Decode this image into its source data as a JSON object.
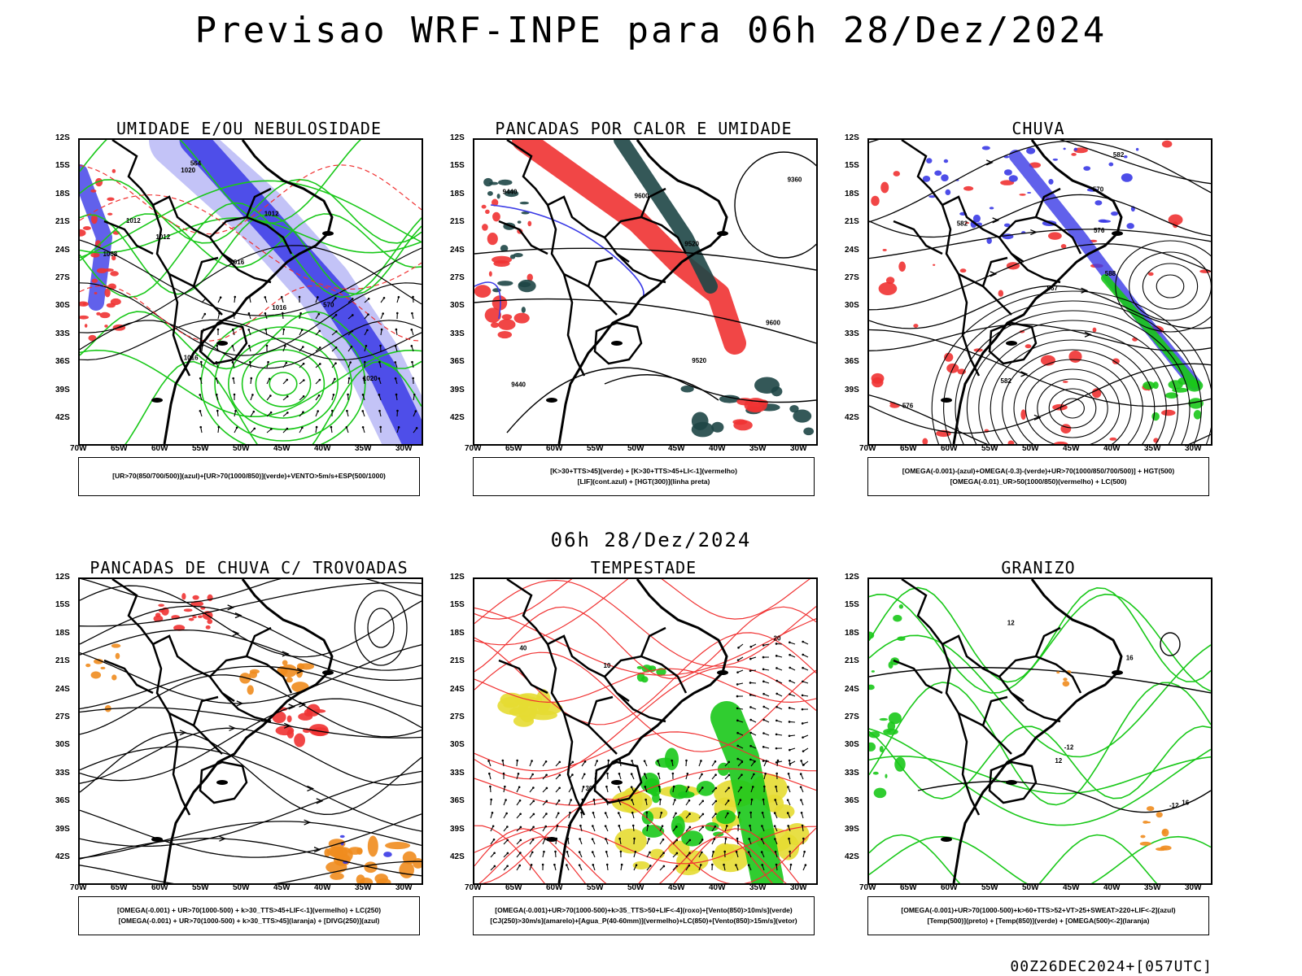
{
  "header": {
    "main_title": "Previsao WRF-INPE  para 06h 28/Dez/2024",
    "mid_title": "06h 28/Dez/2024",
    "footer": "00Z26DEC2024+[057UTC]"
  },
  "axes": {
    "lat_labels": [
      "12S",
      "15S",
      "18S",
      "21S",
      "24S",
      "27S",
      "30S",
      "33S",
      "36S",
      "39S",
      "42S"
    ],
    "lon_labels": [
      "70W",
      "65W",
      "60W",
      "55W",
      "50W",
      "45W",
      "40W",
      "35W",
      "30W"
    ]
  },
  "colors": {
    "blue": "#3a3ae6",
    "green": "#19c819",
    "red": "#f03232",
    "orange": "#f08c1e",
    "yellow": "#e6dc32",
    "darkgreen": "#1e4646",
    "black": "#000000"
  },
  "panels": [
    {
      "title": "UMIDADE E/OU NEBULOSIDADE",
      "legend": [
        "[UR>70(850/700/500)](azul)+[UR>70(1000/850)](verde)+VENTO>5m/s+ESP(500/1000)"
      ],
      "labels": [
        "1012",
        "1012",
        "1016",
        "1020",
        "1016",
        "1012",
        "1008",
        "1016",
        "1020",
        "570",
        "564"
      ]
    },
    {
      "title": "PANCADAS POR CALOR E UMIDADE",
      "legend": [
        "[K>30+TTS>45](verde) + [K>30+TTS>45+LI<-1](vermelho)",
        "[LIF](cont.azul) + [HGT(300)](linha preta)"
      ],
      "labels": [
        "9600",
        "9520",
        "9440",
        "9360",
        "9600",
        "9520",
        "9440"
      ]
    },
    {
      "title": "CHUVA",
      "legend": [
        "[OMEGA(-0.001)-(azul)+OMEGA(-0.3)-(verde)+UR>70(1000/850/700/500)] + HGT(500)",
        "[OMEGA(-0.01)_UR>50(1000/850)(vermelho) + LC(500)"
      ],
      "labels": [
        "582",
        "582",
        "576",
        "570",
        "567",
        "588",
        "576",
        "582"
      ]
    },
    {
      "title": "PANCADAS DE CHUVA C/ TROVOADAS",
      "legend": [
        "[OMEGA(-0.001) + UR>70(1000-500) + k>30_TTS>45+LIF<-1](vermelho) + LC(250)",
        "[OMEGA(-0.001) + UR>70(1000-500) + k>30_TTS>45](laranja) + [DIVG(250)](azul)"
      ],
      "labels": []
    },
    {
      "title": "TEMPESTADE",
      "legend": [
        "[OMEGA(-0.001)+UR>70(1000-500)+k>35_TTS>50+LIF<-4](roxo)+[Vento(850)>10m/s](verde)",
        "[CJ(250)>30m/s](amarelo)+[Agua_P(40-60mm)](vermelho)+LC(850)+[Vento(850)>15m/s](vetor)"
      ],
      "labels": [
        "30",
        "10",
        "20",
        "40"
      ]
    },
    {
      "title": "GRANIZO",
      "legend": [
        "[OMEGA(-0.001)+UR>70(1000-500)+k>60+TTS>52+VT>25+SWEAT>220+LIF<-2](azul)",
        "[Temp(500)](preto) + [Temp(850)](verde) + [OMEGA(500)<-2](laranja)"
      ],
      "labels": [
        "-12",
        "-12",
        "12",
        "16",
        "12",
        "16"
      ]
    }
  ]
}
